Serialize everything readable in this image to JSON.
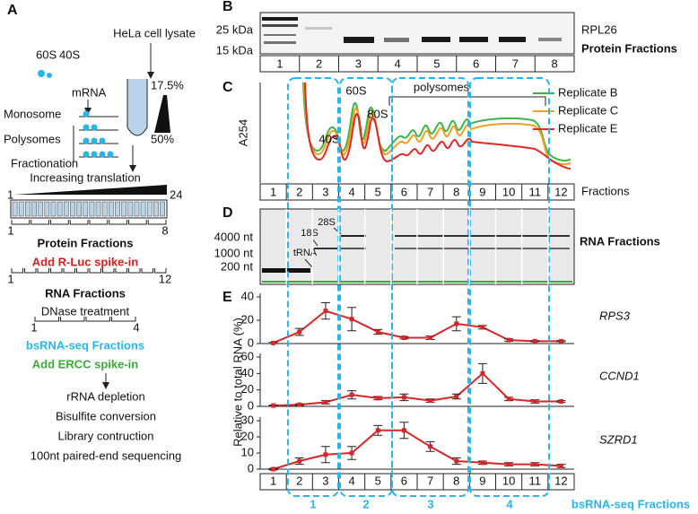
{
  "panel_a": {
    "label": "A",
    "source": "HeLa cell lysate",
    "ribosomes": [
      "60S",
      "40S"
    ],
    "mrna": "mRNA",
    "monosome": "Monosome",
    "polysomes": "Polysomes",
    "gradient_top": "17.5%",
    "gradient_bottom": "50%",
    "fractionation": "Fractionation",
    "increasing": "Increasing translation",
    "scale_start": "1",
    "scale_end": "24",
    "protein_range": [
      "1",
      "8"
    ],
    "protein_fractions": "Protein Fractions",
    "spike1": "Add R-Luc spike-in",
    "rna_range": [
      "1",
      "12"
    ],
    "rna_fractions": "RNA Fractions",
    "dnase": "DNase treatment",
    "bs_range": [
      "1",
      "4"
    ],
    "bs_fractions": "bsRNA-seq Fractions",
    "spike2": "Add ERCC spike-in",
    "steps": [
      "rRNA depletion",
      "Bisulfite conversion",
      "Library contruction",
      "100nt paired-end sequencing"
    ]
  },
  "panel_b": {
    "label": "B",
    "markers": [
      "25 kDa",
      "15 kDa"
    ],
    "lanes": [
      "1",
      "2",
      "3",
      "4",
      "5",
      "6",
      "7",
      "8"
    ],
    "protein": "RPL26",
    "caption": "Protein Fractions"
  },
  "panel_c": {
    "label": "C",
    "ylabel": "A254",
    "peaks": [
      "40S",
      "60S",
      "80S",
      "polysomes"
    ],
    "legend": [
      {
        "name": "Replicate B",
        "color": "#3cb44b"
      },
      {
        "name": "Replicate C",
        "color": "#f0a020"
      },
      {
        "name": "Replicate E",
        "color": "#e02828"
      }
    ],
    "fractions": [
      "1",
      "2",
      "3",
      "4",
      "5",
      "6",
      "7",
      "8",
      "9",
      "10",
      "11",
      "12"
    ],
    "xlabel": "Fractions"
  },
  "panel_d": {
    "label": "D",
    "markers": [
      "4000 nt",
      "1000 nt",
      "200 nt"
    ],
    "bands": [
      "tRNA",
      "18S",
      "28S"
    ],
    "caption": "RNA Fractions"
  },
  "panel_e": {
    "label": "E",
    "ylabel": "Relative to total RNA (%)",
    "groups": [
      "1",
      "2",
      "3",
      "4"
    ],
    "caption": "bsRNA-seq Fractions"
  },
  "chart_data": [
    {
      "type": "line",
      "title": "RPS3",
      "color": "#d62728",
      "x": [
        1,
        2,
        3,
        4,
        5,
        6,
        7,
        8,
        9,
        10,
        11,
        12
      ],
      "xlim": [
        0.5,
        12.5
      ],
      "values": [
        0.5,
        10,
        28,
        21,
        10,
        5,
        5,
        17,
        14,
        3,
        2,
        2
      ],
      "errors": [
        0.5,
        3,
        7,
        10,
        2,
        1,
        1.5,
        6,
        1.5,
        1,
        0.5,
        0.5
      ],
      "ylim": [
        0,
        40
      ],
      "yticks": [
        0,
        20,
        40
      ]
    },
    {
      "type": "line",
      "title": "CCND1",
      "color": "#d62728",
      "x": [
        1,
        2,
        3,
        4,
        5,
        6,
        7,
        8,
        9,
        10,
        11,
        12
      ],
      "xlim": [
        0.5,
        12.5
      ],
      "values": [
        1,
        2,
        5,
        14,
        10,
        11,
        7,
        12,
        40,
        9,
        6,
        6
      ],
      "errors": [
        0.5,
        1,
        2,
        5,
        2,
        4,
        2,
        3,
        12,
        2,
        2,
        1
      ],
      "ylim": [
        0,
        60
      ],
      "yticks": [
        0,
        20,
        40,
        60
      ]
    },
    {
      "type": "line",
      "title": "SZRD1",
      "color": "#d62728",
      "x": [
        1,
        2,
        3,
        4,
        5,
        6,
        7,
        8,
        9,
        10,
        11,
        12
      ],
      "xlim": [
        0.5,
        12.5
      ],
      "xticks": [
        1,
        2,
        3,
        4,
        5,
        6,
        7,
        8,
        9,
        10,
        11,
        12
      ],
      "values": [
        0,
        5,
        9,
        10,
        24,
        24,
        14,
        5,
        4,
        3,
        3,
        2
      ],
      "errors": [
        0.5,
        2,
        5,
        4,
        3,
        5,
        3,
        2,
        1,
        1,
        1,
        1
      ],
      "ylim": [
        0,
        30
      ],
      "yticks": [
        0,
        10,
        20,
        30
      ]
    }
  ]
}
